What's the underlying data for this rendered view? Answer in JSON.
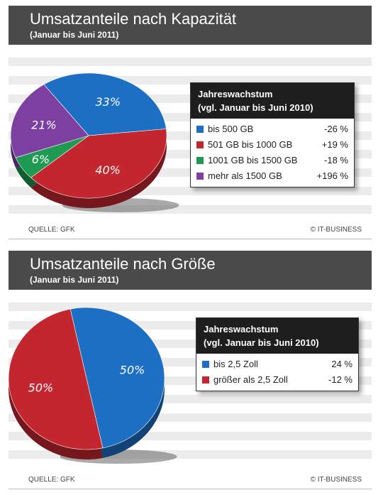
{
  "chart_data": [
    {
      "type": "pie",
      "title": "Umsatzanteile nach Kapazität",
      "subtitle": "(Januar bis Juni 2011)",
      "slices": [
        {
          "label": "bis 500 GB",
          "value": 33,
          "display": "33%",
          "growth": "-26 %",
          "color": "#1d6fc4"
        },
        {
          "label": "501 GB bis 1000 GB",
          "value": 40,
          "display": "40%",
          "growth": "+19 %",
          "color": "#c3262f"
        },
        {
          "label": "1001 GB bis 1500 GB",
          "value": 6,
          "display": "6%",
          "growth": "-18 %",
          "color": "#1f9a52"
        },
        {
          "label": "mehr als 1500 GB",
          "value": 21,
          "display": "21%",
          "growth": "+196 %",
          "color": "#7d3fa0"
        }
      ],
      "legend_title_1": "Jahreswachstum",
      "legend_title_2": "(vgl. Januar bis Juni 2010)",
      "source": "QUELLE: GFK",
      "copyright": "© IT-BUSINESS"
    },
    {
      "type": "pie",
      "title": "Umsatzanteile nach Größe",
      "subtitle": "(Januar bis Juni 2011)",
      "slices": [
        {
          "label": "bis 2,5 Zoll",
          "value": 50,
          "display": "50%",
          "growth": "24 %",
          "color": "#1d6fc4"
        },
        {
          "label": "größer als 2,5 Zoll",
          "value": 50,
          "display": "50%",
          "growth": "-12 %",
          "color": "#c3262f"
        }
      ],
      "legend_title_1": "Jahreswachstum",
      "legend_title_2": "(vgl. Januar bis Juni 2010)",
      "source": "QUELLE: GFK",
      "copyright": "© IT-BUSINESS"
    }
  ]
}
